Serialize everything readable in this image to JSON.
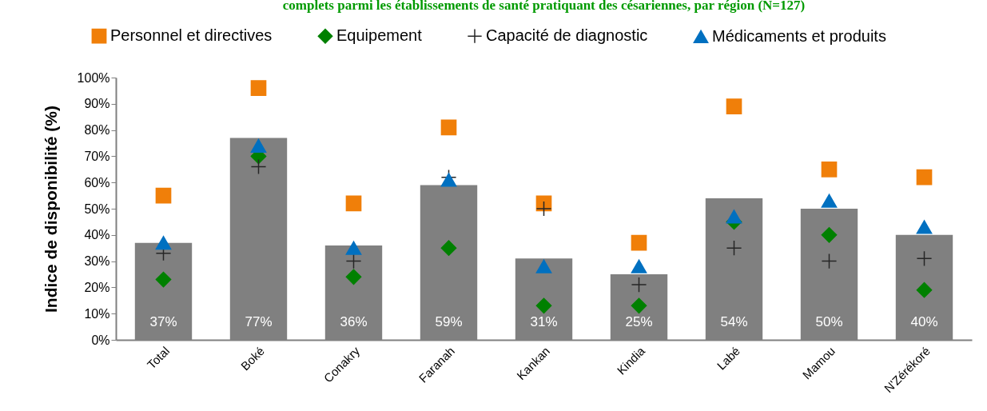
{
  "chart_data": {
    "type": "bar",
    "title": "complets parmi les établissements de santé pratiquant des césariennes, par région (N=127)",
    "ylabel": "Indice de disponibilité (%)",
    "categories": [
      "Total",
      "Boké",
      "Conakry",
      "Faranah",
      "Kankan",
      "Kindia",
      "Labé",
      "Mamou",
      "N'Zérékoré"
    ],
    "series": [
      {
        "color": "#808080",
        "values": [
          37,
          77,
          36,
          59,
          31,
          25,
          54,
          50,
          40
        ],
        "value_labels": [
          "37%",
          "77%",
          "36%",
          "59%",
          "31%",
          "25%",
          "54%",
          "50%",
          "40%"
        ]
      },
      {
        "name": "Personnel et directives",
        "type": "scatter",
        "marker": "square",
        "color": "#f07f09",
        "values": [
          55,
          96,
          52,
          81,
          52,
          37,
          89,
          65,
          62
        ]
      },
      {
        "name": "Equipement",
        "type": "scatter",
        "marker": "diamond",
        "color": "#008000",
        "values": [
          23,
          70,
          24,
          35,
          13,
          13,
          45,
          40,
          19
        ]
      },
      {
        "name": "Capacité de diagnostic",
        "type": "scatter",
        "marker": "cross",
        "color": "#262626",
        "values": [
          33,
          66,
          30,
          62,
          50,
          21,
          35,
          30,
          31
        ]
      },
      {
        "name": "Médicaments et produits",
        "type": "scatter",
        "marker": "triangle",
        "color": "#0070c0",
        "values": [
          37,
          74,
          35,
          61,
          28,
          28,
          47,
          53,
          43
        ]
      }
    ],
    "ylim": [
      0,
      100
    ],
    "yticks": [
      {
        "value": 0,
        "label": "0%"
      },
      {
        "value": 10,
        "label": "10%"
      },
      {
        "value": 20,
        "label": "20%"
      },
      {
        "value": 30,
        "label": "30%"
      },
      {
        "value": 40,
        "label": "40%"
      },
      {
        "value": 50,
        "label": "50%"
      },
      {
        "value": 60,
        "label": "60%"
      },
      {
        "value": 70,
        "label": "70%"
      },
      {
        "value": 80,
        "label": "80%"
      },
      {
        "value": 90,
        "label": "90%"
      },
      {
        "value": 100,
        "label": "100%"
      }
    ],
    "legend": "top",
    "grid": false
  }
}
